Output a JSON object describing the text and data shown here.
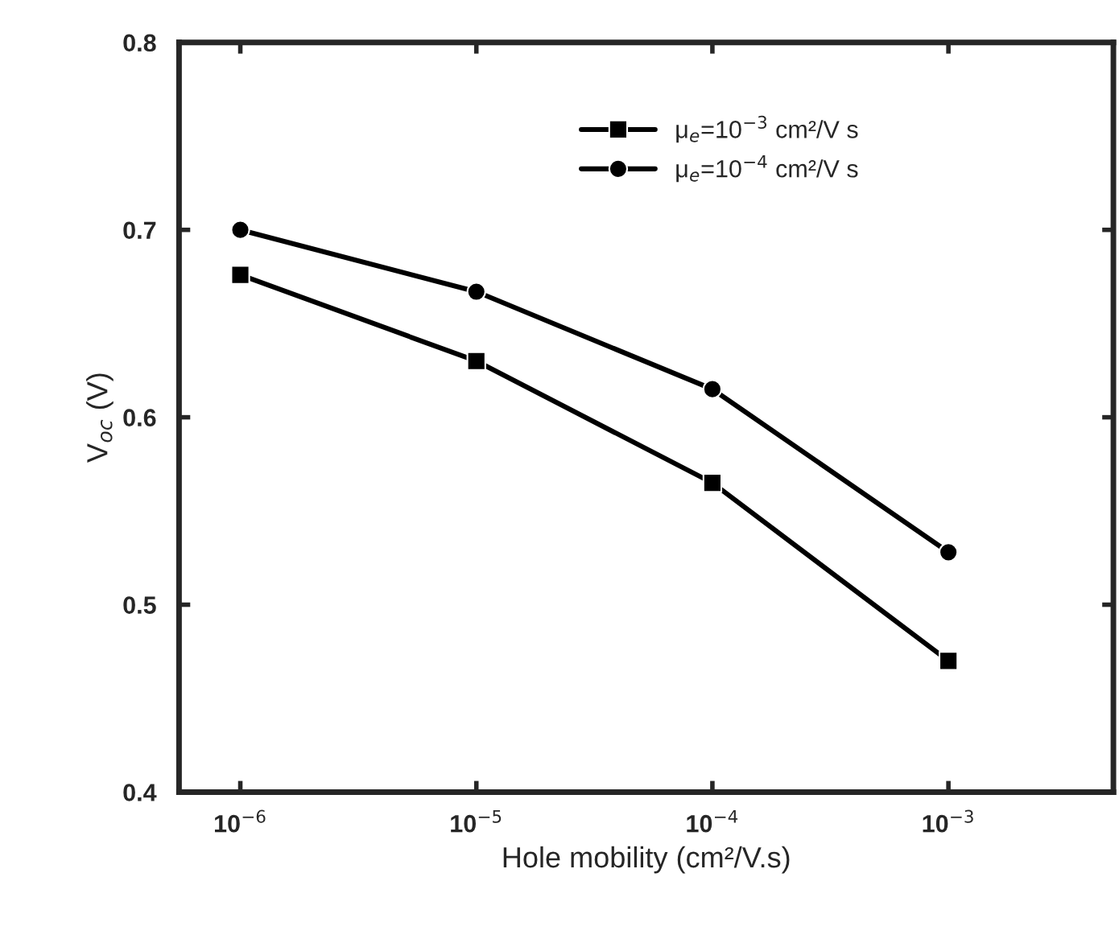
{
  "chart_data": {
    "type": "line",
    "xlabel": "Hole mobility (cm²/V.s)",
    "ylabel": "V$_{oc}$ (V)",
    "x": [
      1e-06,
      1e-05,
      0.0001,
      0.001
    ],
    "series": [
      {
        "name": "μ$_{e}$=10$^{−3}$ cm²/V s",
        "color": "#000000",
        "marker": "square",
        "values": [
          0.676,
          0.63,
          0.565,
          0.47
        ]
      },
      {
        "name": "μ$_{e}$=10$^{−4}$ cm²/V s",
        "color": "#000000",
        "marker": "circle",
        "values": [
          0.7,
          0.667,
          0.615,
          0.528
        ]
      }
    ],
    "log": "x",
    "xlim": [
      5.5e-07,
      0.005
    ],
    "xticks": [
      {
        "value": 1e-06,
        "label": "10$^{−6}$"
      },
      {
        "value": 1e-05,
        "label": "10$^{−5}$"
      },
      {
        "value": 0.0001,
        "label": "10$^{−4}$"
      },
      {
        "value": 0.001,
        "label": "10$^{−3}$"
      }
    ],
    "ylim": [
      0.4,
      0.8
    ],
    "yticks": [
      0.4,
      0.5,
      0.6,
      0.7,
      0.8
    ],
    "grid": false,
    "legend": "top right",
    "line_style": "solid"
  }
}
